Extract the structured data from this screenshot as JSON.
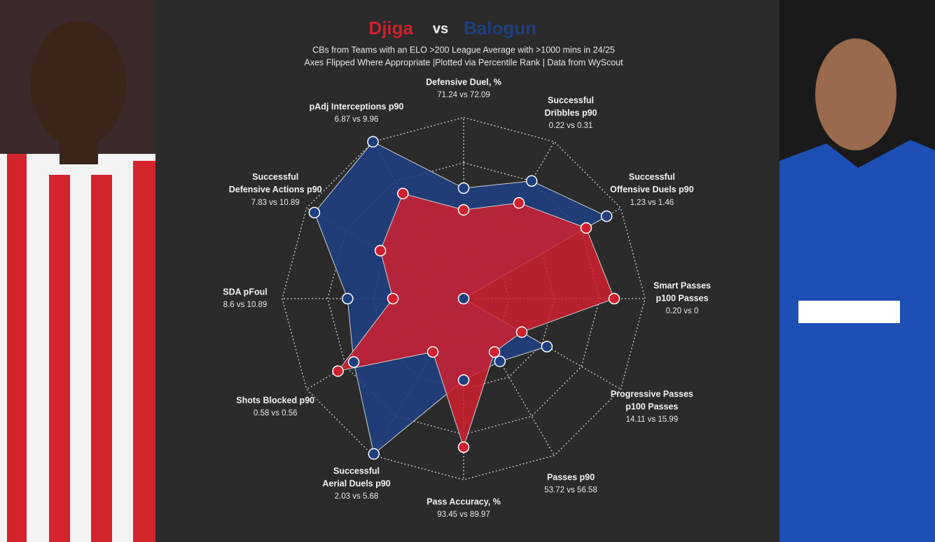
{
  "chart_data": {
    "type": "radar",
    "title_separator": "vs",
    "subtitle": [
      "CBs from Teams with an ELO >200 League Average with >1000 mins in 24/25",
      "Axes Flipped Where Appropriate |Plotted via Percentile Rank | Data from WyScout"
    ],
    "axes": [
      {
        "label": [
          "Defensive Duel, %"
        ],
        "compare": "71.24 vs 72.09"
      },
      {
        "label": [
          "Successful",
          "Dribbles p90"
        ],
        "compare": "0.22 vs 0.31"
      },
      {
        "label": [
          "Successful",
          "Offensive Duels p90"
        ],
        "compare": "1.23 vs 1.46"
      },
      {
        "label": [
          "Smart Passes",
          "p100 Passes"
        ],
        "compare": "0.20 vs 0"
      },
      {
        "label": [
          "Progressive Passes",
          "p100 Passes"
        ],
        "compare": "14.11 vs 15.99"
      },
      {
        "label": [
          "Passes p90"
        ],
        "compare": "53.72 vs 56.58"
      },
      {
        "label": [
          "Pass Accuracy, %"
        ],
        "compare": "93.45 vs 89.97"
      },
      {
        "label": [
          "Successful",
          "Aerial Duels p90"
        ],
        "compare": "2.03 vs 5.68"
      },
      {
        "label": [
          "Shots Blocked p90"
        ],
        "compare": "0.58 vs 0.56"
      },
      {
        "label": [
          "SDA pFoul"
        ],
        "compare": "8.6 vs 10.89"
      },
      {
        "label": [
          "Successful",
          "Defensive Actions p90"
        ],
        "compare": "7.83 vs 10.89"
      },
      {
        "label": [
          "pAdj Interceptions p90"
        ],
        "compare": "6.87 vs 9.96"
      }
    ],
    "series": [
      {
        "name": "Balogun",
        "color": "#1f3f80",
        "values": [
          61,
          75,
          91,
          0,
          53,
          40,
          45,
          99,
          70,
          64,
          95,
          100
        ]
      },
      {
        "name": "Djiga",
        "color": "#d0202f",
        "values": [
          49,
          61,
          78,
          83,
          37,
          34,
          82,
          34,
          80,
          39,
          53,
          67
        ]
      }
    ],
    "rlim": [
      0,
      100
    ],
    "rticks": [
      25,
      50,
      75,
      100
    ],
    "grid": true
  }
}
